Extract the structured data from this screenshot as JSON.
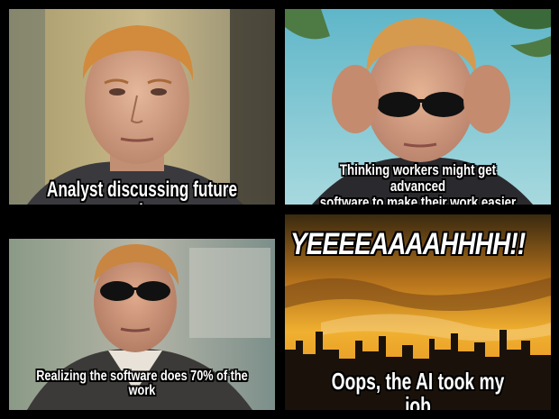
{
  "panels": [
    {
      "caption": "Analyst discussing future roles"
    },
    {
      "caption_line1": "Thinking workers might get advanced",
      "caption_line2": "software to make their work easier"
    },
    {
      "caption_line1": "Realizing the software does 70% of the",
      "caption_line2": "work"
    },
    {
      "banner": "YEEEEAAAAHHHH!!",
      "caption": "Oops, the AI took my job"
    }
  ],
  "colors": {
    "background": "#000000",
    "text": "#ffffff",
    "sunset_sky": "#e8a020",
    "hair": "#d28a3c",
    "skin": "#d9a88a"
  }
}
